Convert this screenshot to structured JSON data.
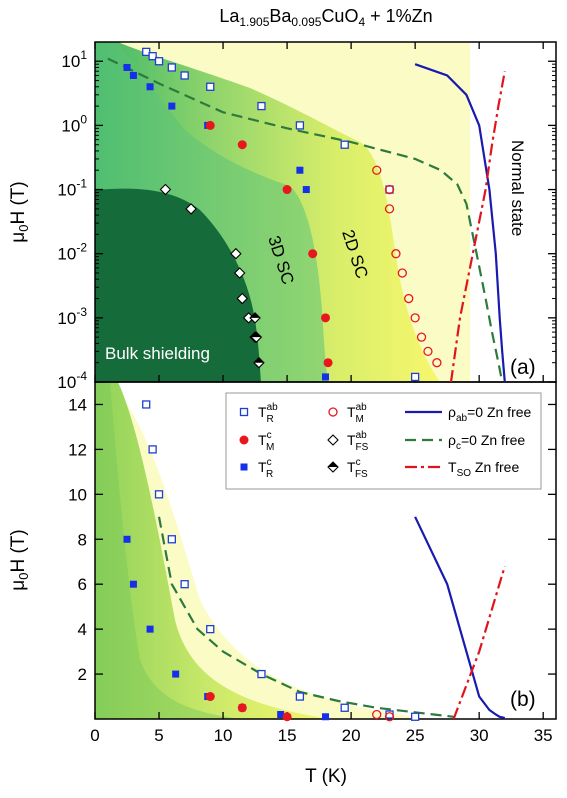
{
  "figure": {
    "title_main": "La",
    "title_sub1": "1.905",
    "title_mid": "Ba",
    "title_sub2": "0.095",
    "title_end": "CuO",
    "title_sub3": "4",
    "title_tail": " + 1%Zn",
    "xlabel": "T (K)",
    "ylabel_main": "μ",
    "ylabel_sub": "0",
    "ylabel_tail": "H (T)"
  },
  "colors": {
    "open_sq": "#1f3fd0",
    "solid_sq": "#1530e8",
    "red": "#e8171d",
    "rho_ab": "#1a1ab0",
    "rho_c": "#2c7a3c",
    "tso": "#e0141c",
    "bulk": "#156b3a",
    "sc2d": "#f2f56a",
    "sc3d": "#9fd870",
    "pale": "#fbfbc6"
  },
  "chart_data": [
    {
      "panel": "(a)",
      "type": "scatter",
      "xlim": [
        0,
        36
      ],
      "ylim_log10": [
        -4,
        1.3
      ],
      "yscale": "log",
      "xticks": [
        0,
        5,
        10,
        15,
        20,
        25,
        30,
        35
      ],
      "yticks": [
        "10^-4",
        "10^-3",
        "10^-2",
        "10^-1",
        "10^0",
        "10^1"
      ],
      "region_labels": [
        "Bulk shielding",
        "3D SC",
        "2D SC",
        "Normal state"
      ],
      "series": [
        {
          "key": "TR_ab",
          "x": [
            4.0,
            4.5,
            5.0,
            6.0,
            7.0,
            9.0,
            13.0,
            16.0,
            19.5,
            23.0,
            25.0
          ],
          "y": [
            14,
            12,
            10,
            8,
            6,
            4,
            2,
            1,
            0.5,
            0.1,
            0.00012
          ]
        },
        {
          "key": "TR_c",
          "x": [
            2.5,
            3.0,
            4.3,
            6.0,
            8.8,
            16.0,
            16.5,
            18.0
          ],
          "y": [
            8,
            6,
            4,
            2,
            1,
            0.2,
            0.1,
            0.00012
          ]
        },
        {
          "key": "TM_ab",
          "x": [
            22.0,
            23.0,
            23.0,
            23.5,
            24.0,
            24.5,
            25.0,
            25.5,
            26.0,
            26.7
          ],
          "y": [
            0.2,
            0.1,
            0.05,
            0.01,
            0.005,
            0.002,
            0.001,
            0.0005,
            0.0003,
            0.0002
          ]
        },
        {
          "key": "TM_c",
          "x": [
            9.0,
            11.5,
            15.0,
            17.0,
            18.0,
            18.2
          ],
          "y": [
            1.0,
            0.5,
            0.1,
            0.01,
            0.001,
            0.0002
          ]
        },
        {
          "key": "TFS_ab",
          "x": [
            5.5,
            7.5,
            11.0,
            11.3,
            11.5,
            12.0,
            12.5
          ],
          "y": [
            0.1,
            0.05,
            0.01,
            0.005,
            0.002,
            0.001,
            0.0005
          ]
        },
        {
          "key": "TFS_c",
          "x": [
            12.5,
            12.6,
            12.8
          ],
          "y": [
            0.001,
            0.0005,
            0.0002
          ]
        }
      ],
      "lines": [
        {
          "key": "rho_ab",
          "x": [
            25.0,
            27.5,
            29.0,
            30.0,
            30.8,
            31.3,
            31.6,
            31.8,
            32.0
          ],
          "y": [
            9,
            6,
            3,
            1,
            0.1,
            0.01,
            0.001,
            0.0003,
            0.0001
          ]
        },
        {
          "key": "rho_c",
          "x": [
            1.0,
            5.0,
            10.0,
            15.0,
            20.0,
            25.0,
            27.0,
            28.3,
            29.0,
            29.8,
            30.5,
            31.0,
            31.5,
            31.8
          ],
          "y": [
            11,
            4.5,
            1.6,
            0.9,
            0.55,
            0.3,
            0.2,
            0.12,
            0.06,
            0.01,
            0.002,
            0.0006,
            0.0002,
            0.0001
          ]
        },
        {
          "key": "tso",
          "x": [
            27.8,
            28.5,
            29.5,
            30.5,
            31.0,
            31.5,
            32.0
          ],
          "y": [
            0.0001,
            0.001,
            0.01,
            0.1,
            0.5,
            2,
            7
          ]
        }
      ]
    },
    {
      "panel": "(b)",
      "type": "scatter",
      "xlim": [
        0,
        36
      ],
      "ylim": [
        0,
        15
      ],
      "xticks": [
        0,
        5,
        10,
        15,
        20,
        25,
        30,
        35
      ],
      "yticks": [
        2,
        4,
        6,
        8,
        10,
        12,
        14
      ],
      "series": [
        {
          "key": "TR_ab",
          "x": [
            4.0,
            4.5,
            5.0,
            6.0,
            7.0,
            9.0,
            13.0,
            16.0,
            19.5,
            23.0,
            25.0
          ],
          "y": [
            14,
            12,
            10,
            8,
            6,
            4,
            2,
            1,
            0.5,
            0.2,
            0.1
          ]
        },
        {
          "key": "TR_c",
          "x": [
            2.5,
            3.0,
            4.3,
            6.3,
            8.8,
            11.5,
            14.5,
            18.0
          ],
          "y": [
            8,
            6,
            4,
            2,
            1,
            0.5,
            0.2,
            0.1
          ]
        },
        {
          "key": "TM_ab",
          "x": [
            22.0,
            23.0
          ],
          "y": [
            0.2,
            0.1
          ]
        },
        {
          "key": "TM_c",
          "x": [
            9.0,
            11.5,
            15.0
          ],
          "y": [
            1.0,
            0.5,
            0.1
          ]
        }
      ],
      "lines": [
        {
          "key": "rho_ab",
          "x": [
            25.0,
            27.5,
            29.0,
            30.0,
            30.8,
            31.3,
            31.6,
            32.0
          ],
          "y": [
            9,
            6,
            3,
            1,
            0.4,
            0.2,
            0.1,
            0.05
          ]
        },
        {
          "key": "rho_c",
          "x": [
            5.0,
            6.0,
            8.0,
            10.0,
            13.0,
            16.0,
            19.0,
            22.0,
            25.0,
            28.0
          ],
          "y": [
            9,
            6,
            4,
            3,
            2,
            1.2,
            0.8,
            0.5,
            0.3,
            0.1
          ]
        },
        {
          "key": "tso",
          "x": [
            28.0,
            30.0,
            32.0
          ],
          "y": [
            0,
            3,
            6.8
          ]
        }
      ]
    }
  ],
  "legend": [
    {
      "key": "TR_ab",
      "label": "T",
      "sub": "R",
      "sup": "ab",
      "marker": "open_sq"
    },
    {
      "key": "TM_ab",
      "label": "T",
      "sub": "M",
      "sup": "ab",
      "marker": "open_circle"
    },
    {
      "key": "rho_ab",
      "label": "ρ",
      "sub": "ab",
      "tail": "=0  Zn free",
      "marker": "line"
    },
    {
      "key": "TM_c",
      "label": "T",
      "sub": "M",
      "sup": "c",
      "marker": "solid_circle"
    },
    {
      "key": "TFS_ab",
      "label": "T",
      "sub": "FS",
      "sup": "ab",
      "marker": "diamond"
    },
    {
      "key": "rho_c",
      "label": "ρ",
      "sub": "c",
      "tail": "=0  Zn free",
      "marker": "dash"
    },
    {
      "key": "TR_c",
      "label": "T",
      "sub": "R",
      "sup": "c",
      "marker": "solid_sq"
    },
    {
      "key": "TFS_c",
      "label": "T",
      "sub": "FS",
      "sup": "c",
      "marker": "half_diamond"
    },
    {
      "key": "tso",
      "label": "T",
      "sub": "SO",
      "tail": "   Zn free",
      "marker": "dashdot"
    }
  ]
}
